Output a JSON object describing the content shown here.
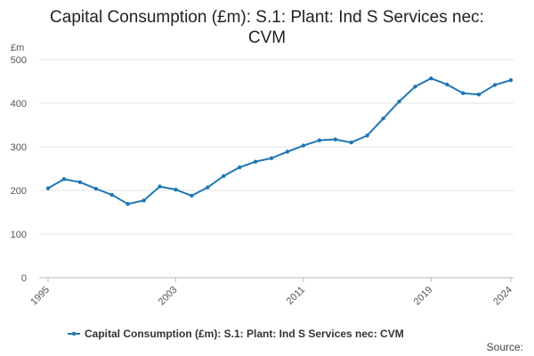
{
  "chart_data": {
    "type": "line",
    "title_lines": [
      "Capital Consumption (£m): S.1: Plant: Ind S Services nec:",
      "CVM"
    ],
    "ylabel": "£m",
    "xlabel": "",
    "ylim": [
      0,
      500
    ],
    "yticks": [
      "0",
      "100",
      "200",
      "300",
      "400",
      "500"
    ],
    "xlim": [
      1995,
      2024
    ],
    "xticks": [
      "1995",
      "2003",
      "2011",
      "2019",
      "2024"
    ],
    "grid": true,
    "legend_position": "bottom",
    "series": [
      {
        "name": "Capital Consumption (£m): S.1: Plant: Ind S Services nec: CVM",
        "color": "#1f77b4",
        "x": [
          1995,
          1996,
          1997,
          1998,
          1999,
          2000,
          2001,
          2002,
          2003,
          2004,
          2005,
          2006,
          2007,
          2008,
          2009,
          2010,
          2011,
          2012,
          2013,
          2014,
          2015,
          2016,
          2017,
          2018,
          2019,
          2020,
          2021,
          2022,
          2023,
          2024
        ],
        "values": [
          205,
          226,
          219,
          204,
          190,
          169,
          177,
          209,
          202,
          188,
          207,
          233,
          253,
          266,
          274,
          289,
          303,
          315,
          317,
          310,
          326,
          365,
          404,
          438,
          457,
          443,
          423,
          420,
          442,
          453
        ]
      }
    ],
    "source_label": "Source:"
  }
}
